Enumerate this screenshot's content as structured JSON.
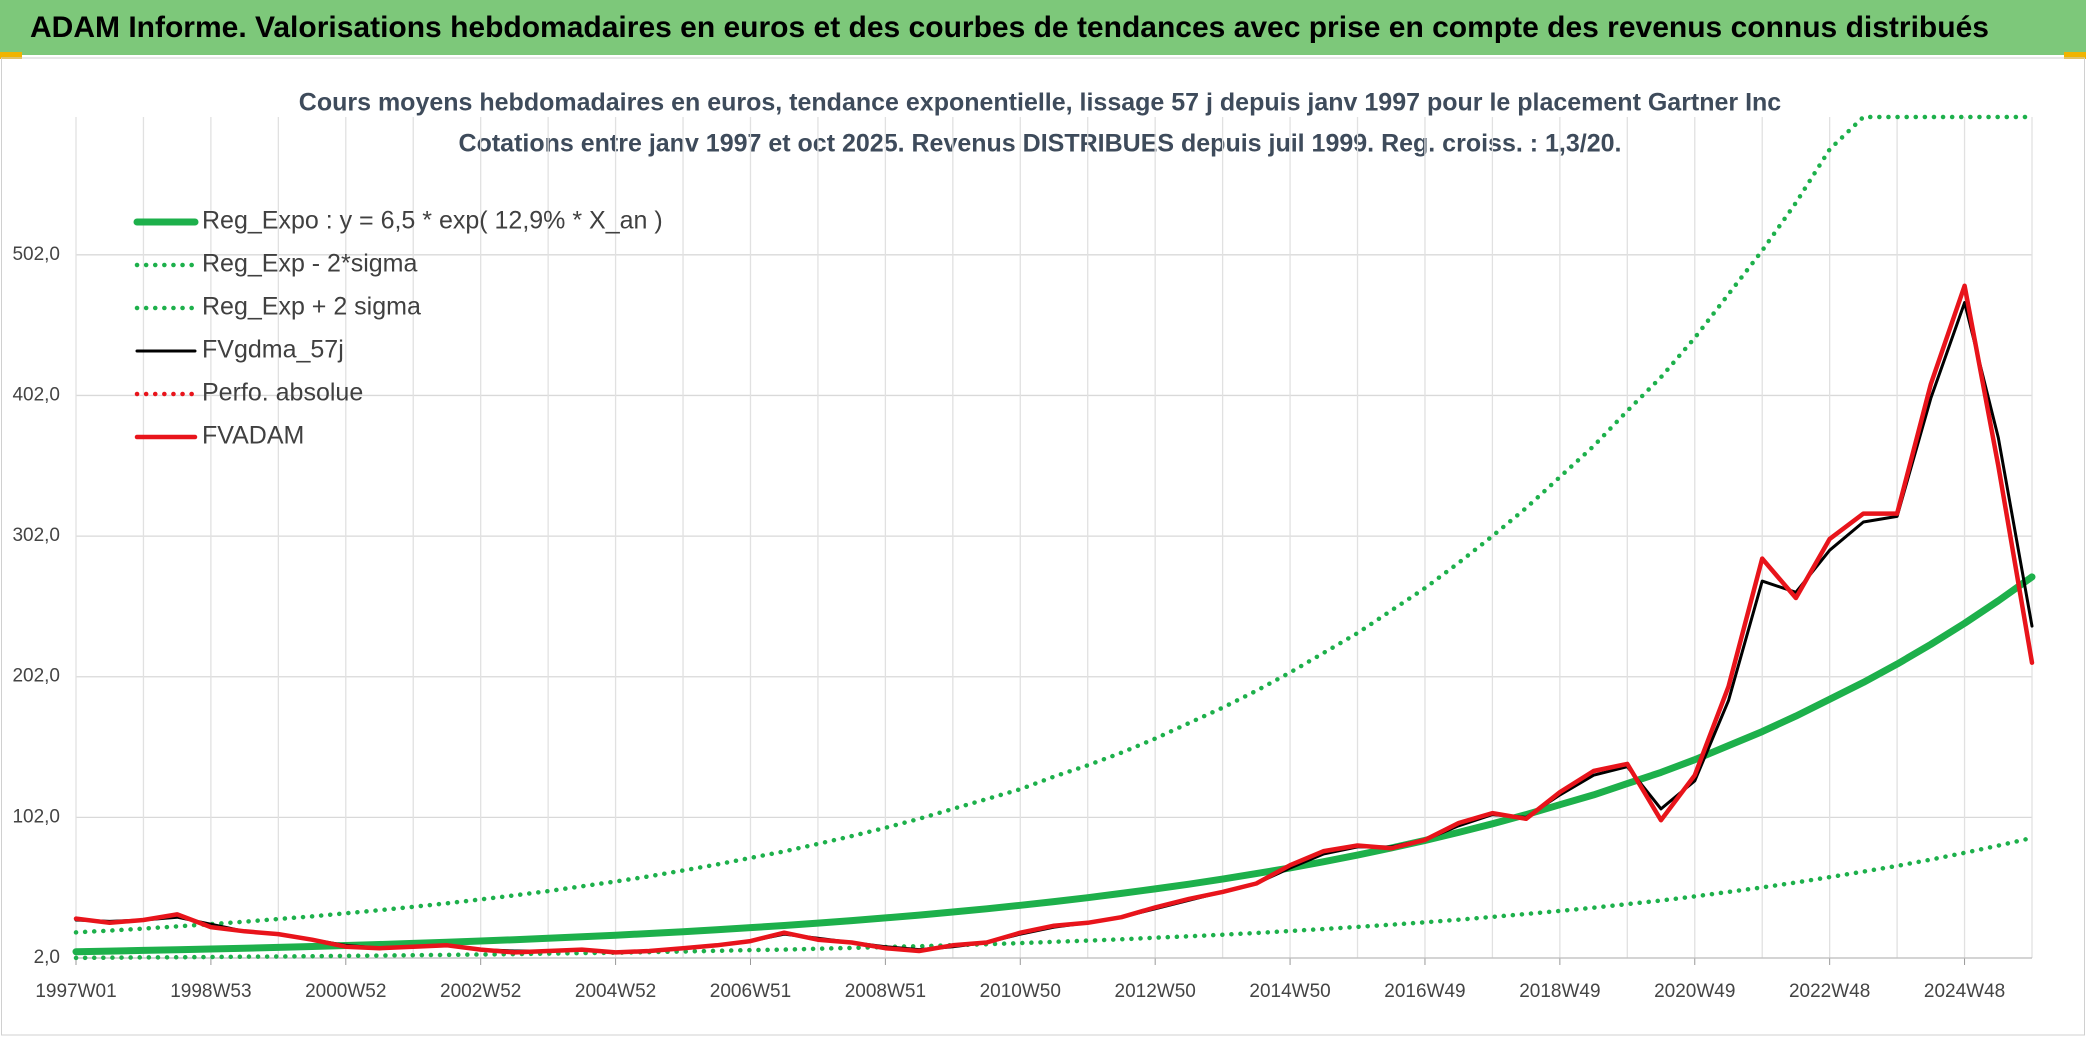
{
  "header": {
    "title": "ADAM Informe. Valorisations hebdomadaires en euros et des courbes de tendances avec prise en compte des revenus connus distribués"
  },
  "chart_data": {
    "type": "line",
    "title": "Cours moyens hebdomadaires en euros, tendance exponentielle, lissage 57 j depuis janv 1997 pour le placement Gartner Inc",
    "subtitle": "Cotations entre janv 1997 et oct 2025. Revenus DISTRIBUES depuis juil 1999. Reg. croiss. : 1,3/20.",
    "categories": [
      "1997W01",
      null,
      null,
      null,
      "1998W53",
      null,
      null,
      null,
      "2000W52",
      null,
      null,
      null,
      "2002W52",
      null,
      null,
      null,
      "2004W52",
      null,
      null,
      null,
      "2006W51",
      null,
      null,
      null,
      "2008W51",
      null,
      null,
      null,
      "2010W50",
      null,
      null,
      null,
      "2012W50",
      null,
      null,
      null,
      "2014W50",
      null,
      null,
      null,
      "2016W49",
      null,
      null,
      null,
      "2018W49",
      null,
      null,
      null,
      "2020W49",
      null,
      null,
      null,
      "2022W48",
      null,
      null,
      null,
      "2024W48",
      null,
      null
    ],
    "ylim": [
      2,
      600
    ],
    "yticks": [
      {
        "value": 2,
        "label": "2,0"
      },
      {
        "value": 102,
        "label": "102,0"
      },
      {
        "value": 202,
        "label": "202,0"
      },
      {
        "value": 302,
        "label": "302,0"
      },
      {
        "value": 402,
        "label": "402,0"
      },
      {
        "value": 502,
        "label": "502,0"
      }
    ],
    "grid": true,
    "legend": "upper-left",
    "series": [
      {
        "name": "Reg_Expo : y = 6,5 * exp( 12,9% *  X_an )",
        "color": "#1db04b",
        "style": "solid",
        "values": [
          6.5,
          6.93,
          7.39,
          7.89,
          8.41,
          8.97,
          9.57,
          10.2,
          10.9,
          11.6,
          12.4,
          13.2,
          14.1,
          15.0,
          16.0,
          17.1,
          18.2,
          19.4,
          20.7,
          22.1,
          23.6,
          25.1,
          26.8,
          28.6,
          30.5,
          32.5,
          34.7,
          37.0,
          39.5,
          42.1,
          44.9,
          47.9,
          51.1,
          54.5,
          58.1,
          62.0,
          66.1,
          70.5,
          75.2,
          80.2,
          85.6,
          91.3,
          97.4,
          104,
          111,
          118,
          126,
          134,
          143,
          153,
          163,
          174,
          186,
          198,
          211,
          225,
          240,
          256,
          273
        ]
      },
      {
        "name": "Reg_Exp - 2*sigma",
        "color": "#1db04b",
        "style": "dotted",
        "values": [
          2.1,
          2.2,
          2.4,
          2.5,
          2.7,
          2.9,
          3.1,
          3.3,
          3.5,
          3.7,
          4.0,
          4.2,
          4.5,
          4.8,
          5.1,
          5.5,
          5.8,
          6.2,
          6.6,
          7.1,
          7.6,
          8.0,
          8.6,
          9.2,
          9.8,
          10.4,
          11.1,
          11.8,
          12.6,
          13.5,
          14.4,
          15.3,
          16.4,
          17.4,
          18.6,
          19.8,
          21.2,
          22.6,
          24.1,
          25.7,
          27.4,
          29.2,
          31.2,
          33.3,
          35.5,
          37.8,
          40.3,
          42.9,
          45.8,
          49.0,
          52.2,
          55.7,
          59.5,
          63.4,
          67.5,
          72.0,
          76.8,
          81.9,
          87.4
        ]
      },
      {
        "name": "Reg_Exp + 2 sigma",
        "color": "#1db04b",
        "style": "dotted",
        "values": [
          20.2,
          21.5,
          22.9,
          24.5,
          26.1,
          27.8,
          29.7,
          31.6,
          33.8,
          36.0,
          38.4,
          40.9,
          43.7,
          46.5,
          49.6,
          53.0,
          56.4,
          60.1,
          64.2,
          68.5,
          73.2,
          77.8,
          83.1,
          88.7,
          94.6,
          101,
          108,
          115,
          122,
          131,
          139,
          148,
          158,
          169,
          180,
          192,
          205,
          219,
          233,
          249,
          265,
          283,
          302,
          322,
          344,
          366,
          391,
          415,
          443,
          474,
          505,
          539,
          577,
          600,
          600,
          600,
          600,
          600,
          600
        ]
      },
      {
        "name": "FVgdma_57j",
        "color": "#000000",
        "style": "solid",
        "values": [
          29,
          28,
          29,
          31,
          26,
          21,
          19,
          15,
          11,
          9,
          10,
          11,
          8,
          7,
          7,
          8,
          6,
          7,
          9,
          11,
          14,
          19,
          16,
          13,
          10,
          8,
          10,
          13,
          19,
          24,
          27,
          31,
          37,
          43,
          49,
          55,
          66,
          76,
          81,
          81,
          86,
          96,
          104,
          102,
          118,
          132,
          138,
          108,
          128,
          185,
          270,
          262,
          292,
          312,
          316,
          400,
          468,
          372,
          238
        ]
      },
      {
        "name": "Perfo. absolue",
        "color": "#e8141b",
        "style": "dotted",
        "values": [
          null,
          null,
          null,
          null,
          null,
          null,
          null,
          null,
          null,
          null,
          null,
          null,
          null,
          null,
          null,
          null,
          null,
          null,
          null,
          null,
          null,
          null,
          null,
          null,
          null,
          null,
          null,
          null,
          null,
          null,
          null,
          null,
          null,
          null,
          null,
          null,
          null,
          null,
          null,
          null,
          null,
          null,
          null,
          null,
          null,
          null,
          null,
          null,
          null,
          null,
          null,
          null,
          null,
          null,
          null,
          null,
          null,
          null,
          null
        ]
      },
      {
        "name": "FVADAM",
        "color": "#e8141b",
        "style": "solid",
        "values": [
          30,
          27,
          29,
          33,
          24,
          21,
          19,
          15,
          10,
          9,
          10,
          11,
          8,
          6,
          7,
          8,
          6,
          7,
          9,
          11,
          14,
          20,
          15,
          13,
          9,
          7,
          11,
          13,
          20,
          25,
          27,
          31,
          38,
          44,
          49,
          55,
          68,
          78,
          82,
          80,
          86,
          98,
          105,
          101,
          120,
          135,
          140,
          100,
          132,
          195,
          286,
          258,
          300,
          318,
          318,
          410,
          480,
          352,
          212
        ]
      }
    ]
  }
}
